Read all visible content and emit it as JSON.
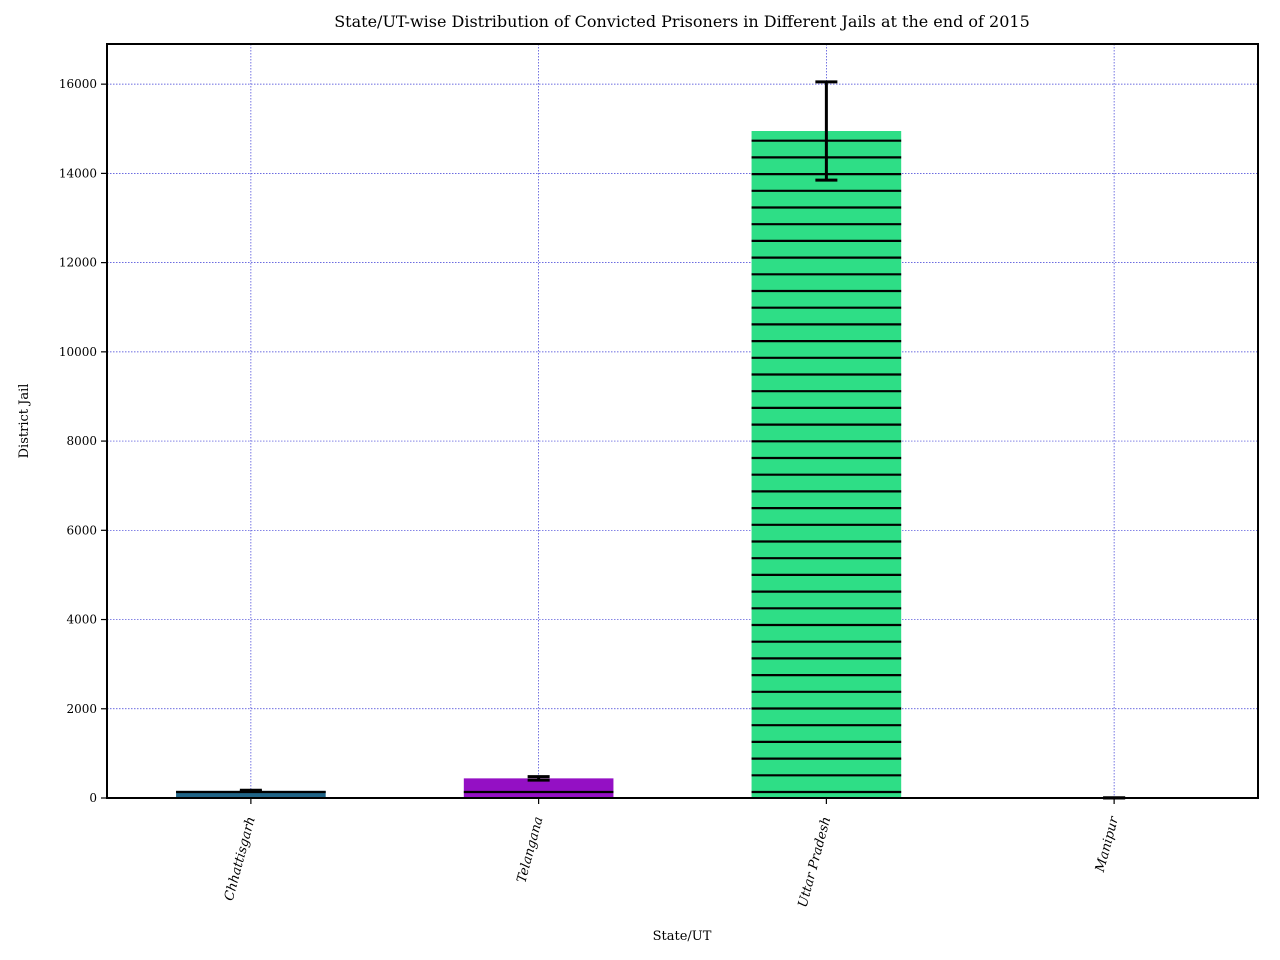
{
  "chart_data": {
    "type": "bar",
    "title": "State/UT-wise Distribution of Convicted Prisoners in Different Jails at the end of 2015",
    "xlabel": "State/UT",
    "ylabel": "District Jail",
    "categories": [
      "Chhattisgarh",
      "Telangana",
      "Uttar Pradesh",
      "Manipur"
    ],
    "values": [
      160,
      440,
      14950,
      0
    ],
    "error": [
      15,
      40,
      1100,
      5
    ],
    "colors": [
      "#1f6487",
      "#9410c4",
      "#2ede86",
      "#1f77b4"
    ],
    "hatch": "horizontal-lines",
    "ylim": [
      0,
      16900
    ],
    "yticks": [
      0,
      2000,
      4000,
      6000,
      8000,
      10000,
      12000,
      14000,
      16000
    ],
    "grid": true
  }
}
